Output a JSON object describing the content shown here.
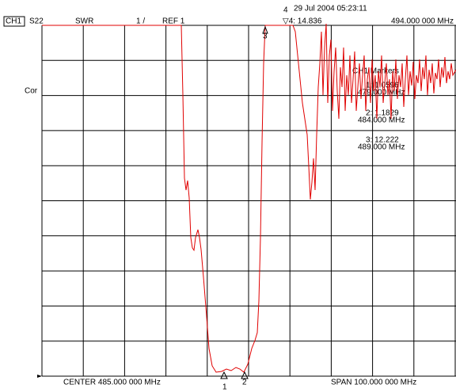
{
  "header": {
    "channel": "CH1",
    "parameter": "S22",
    "format": "SWR",
    "scale": "1 /",
    "ref": "REF 1",
    "date": "29 Jul 2004  05:23:11",
    "active_marker_num": "4",
    "active_marker": "▽4: 14.836",
    "active_marker_freq": "494.000 000 MHz"
  },
  "side_label": "Cor",
  "markers_panel": {
    "title": "CH1 Markers",
    "items": [
      {
        "value": "1: 1.0596",
        "freq": "479.000 MHz"
      },
      {
        "value": "2: 1.1829",
        "freq": "484.000 MHz"
      },
      {
        "value": "3: 12.222",
        "freq": "489.000 MHz"
      }
    ]
  },
  "marker_labels": [
    "1",
    "2",
    "3"
  ],
  "footer": {
    "center": "CENTER 485.000 000 MHz",
    "span": "SPAN 100.000 000 MHz"
  }
}
